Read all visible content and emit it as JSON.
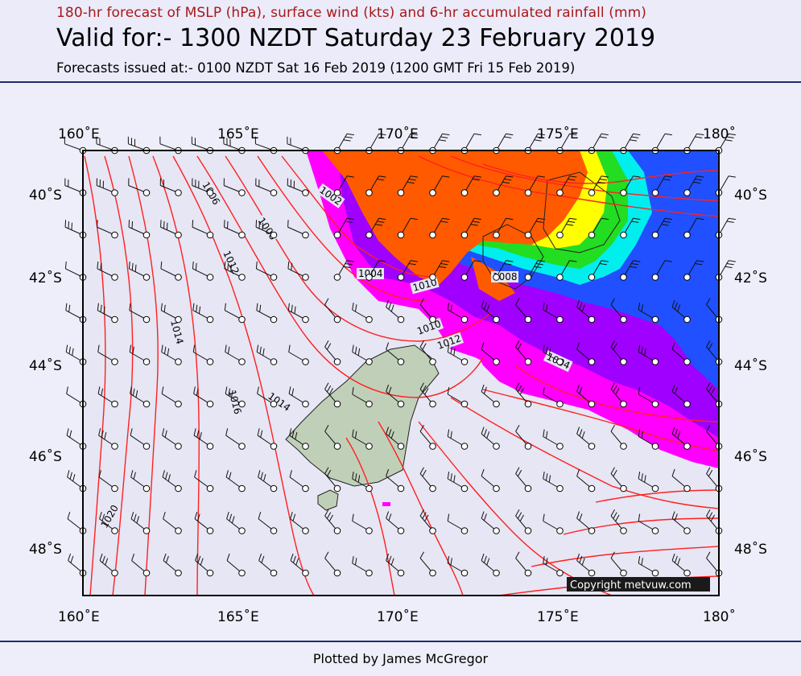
{
  "header": {
    "subtitle": "180-hr forecast of MSLP (hPa), surface wind (kts) and 6-hr accumulated rainfall (mm)",
    "valid": "Valid for:- 1300 NZDT Saturday 23 February 2019",
    "issued": "Forecasts issued at:- 0100 NZDT Sat 16 Feb 2019 (1200 GMT Fri 15 Feb 2019)"
  },
  "map": {
    "longitude_labels": [
      "160˚E",
      "165˚E",
      "170˚E",
      "175˚E",
      "180˚"
    ],
    "latitude_labels": [
      "40˚S",
      "42˚S",
      "44˚S",
      "46˚S",
      "48˚S"
    ],
    "isobar_labels": [
      "1002",
      "1004",
      "1006",
      "1008",
      "1008",
      "1010",
      "1010",
      "1012",
      "1012",
      "1014",
      "1014",
      "1016",
      "1004",
      "1020"
    ],
    "copyright": "Copyright metvuw.com",
    "colors": {
      "isobar": "#ff2020",
      "heavy_rain": "#ff5a00",
      "rain_yellow": "#ffff00",
      "rain_green": "#22dd22",
      "rain_cyan": "#00eeee",
      "rain_blue": "#2050ff",
      "rain_purple": "#a000ff",
      "rain_magenta": "#ff00ff",
      "land": "#c0d0b8"
    }
  },
  "footer": {
    "credit": "Plotted by James McGregor"
  }
}
